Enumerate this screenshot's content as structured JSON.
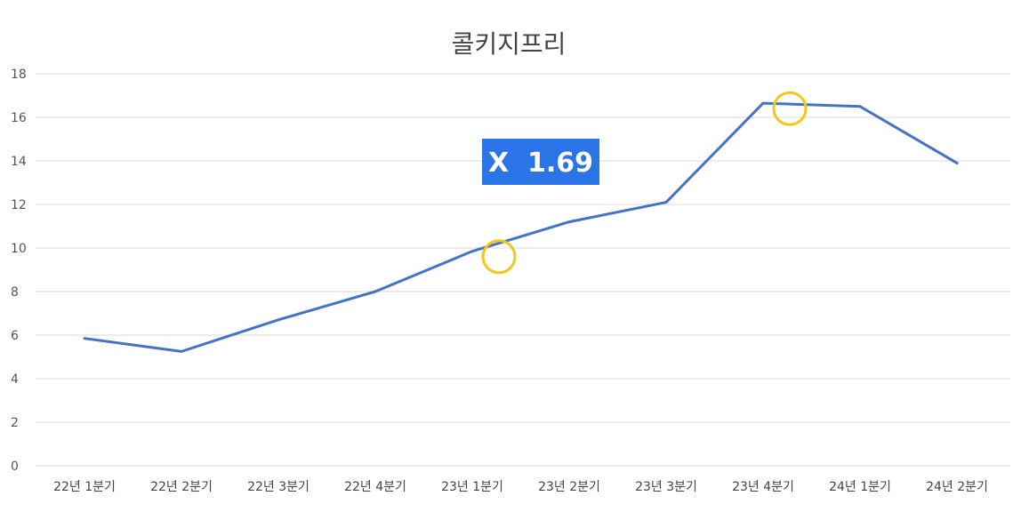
{
  "chart_data": {
    "type": "line",
    "title": "콜키지프리",
    "categories": [
      "22년 1분기",
      "22년 2분기",
      "22년 3분기",
      "22년 4분기",
      "23년 1분기",
      "23년 2분기",
      "23년 3분기",
      "23년 4분기",
      "24년 1분기",
      "24년 2분기"
    ],
    "series": [
      {
        "values": [
          5.85,
          5.25,
          6.7,
          8.0,
          9.85,
          11.2,
          12.1,
          16.65,
          16.5,
          13.9
        ],
        "color": "#4472c4"
      }
    ],
    "ylim": [
      0,
      18
    ],
    "yticks": [
      0,
      2,
      4,
      6,
      8,
      10,
      12,
      14,
      16,
      18
    ],
    "grid": true,
    "annotations": {
      "badge": {
        "text": "X  1.69",
        "color": "#2a74e8"
      },
      "highlights": [
        {
          "x": 4,
          "value": 9.6,
          "color": "#f5c518"
        },
        {
          "x": 7,
          "value": 16.4,
          "color": "#f5c518"
        }
      ]
    }
  }
}
